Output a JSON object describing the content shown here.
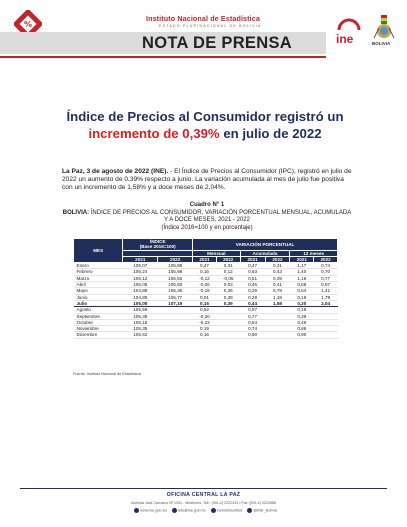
{
  "header": {
    "institution": "Instituto Nacional de Estadística",
    "subtitle": "ESTADO PLURINACIONAL DE BOLIVIA",
    "document_type": "NOTA DE PRENSA",
    "ine_logo_text": "ine",
    "bolivia_text": "BOLIVIA",
    "accent_color": "#c0272d",
    "navy_color": "#1f2e5a"
  },
  "title": {
    "line1": "Índice de Precios al Consumidor registró un",
    "highlight": "incremento de 0,39%",
    "line2_rest": " en julio de 2022"
  },
  "lead": {
    "dateline": "La Paz, 3 de agosto de 2022 (INE).",
    "text": " - El Índice de Precios al Consumidor (IPC), registró en julio de 2022 un aumento de 0,39% respecto a junio. La variación acumulada al mes de julio fue positiva con un incremento de 1,58% y a doce meses de 2,04%."
  },
  "table_caption": {
    "number": "Cuadro N° 1",
    "country": "BOLIVIA:",
    "title": " ÍNDICE DE PRECIOS AL CONSUMIDOR, VARIACIÓN PORCENTUAL MENSUAL, ACUMULADA Y A DOCE MESES, 2021 - 2022",
    "note": "(Índice 2016=100 y en porcentaje)"
  },
  "table": {
    "mes_header": "MES",
    "indice_header": "ÍNDICE",
    "indice_base": "(Base 2016=100)",
    "variacion_header": "VARIACIÓN PORCENTUAL",
    "sub_headers": [
      "Mensual",
      "Acumulada",
      "12 meses"
    ],
    "years": [
      "2021",
      "2022"
    ],
    "rows": [
      {
        "mes": "Enero",
        "v": [
          "105,07",
          "105,88",
          "0,47",
          "0,31",
          "0,47",
          "0,31",
          "1,17",
          "0,74"
        ]
      },
      {
        "mes": "Febrero",
        "v": [
          "105,24",
          "105,98",
          "0,16",
          "0,12",
          "0,63",
          "0,43",
          "1,40",
          "0,70"
        ]
      },
      {
        "mes": "Marzo",
        "v": [
          "105,12",
          "105,93",
          "-0,12",
          "-0,05",
          "0,51",
          "0,39",
          "1,16",
          "0,77"
        ]
      },
      {
        "mes": "Abril",
        "v": [
          "105,05",
          "105,93",
          "-0,06",
          "0,03",
          "0,45",
          "0,41",
          "0,68",
          "0,87"
        ]
      },
      {
        "mes": "Mayo",
        "v": [
          "104,88",
          "106,35",
          "-0,16",
          "0,36",
          "0,29",
          "0,78",
          "0,54",
          "1,41"
        ]
      },
      {
        "mes": "Junio",
        "v": [
          "104,89",
          "106,77",
          "0,01",
          "0,39",
          "0,29",
          "1,18",
          "0,19",
          "1,79"
        ]
      },
      {
        "mes": "Julio",
        "v": [
          "105,05",
          "107,19",
          "0,15",
          "0,39",
          "0,44",
          "1,58",
          "0,20",
          "2,04"
        ],
        "highlight": true
      },
      {
        "mes": "Agosto",
        "v": [
          "105,59",
          "",
          "0,52",
          "",
          "0,97",
          "",
          "0,18",
          ""
        ]
      },
      {
        "mes": "Septiembre",
        "v": [
          "105,39",
          "",
          "-0,20",
          "",
          "0,77",
          "",
          "0,39",
          ""
        ]
      },
      {
        "mes": "Octubre",
        "v": [
          "105,15",
          "",
          "-0,23",
          "",
          "0,54",
          "",
          "0,49",
          ""
        ]
      },
      {
        "mes": "Noviembre",
        "v": [
          "105,35",
          "",
          "0,19",
          "",
          "0,74",
          "",
          "0,86",
          ""
        ]
      },
      {
        "mes": "Diciembre",
        "v": [
          "105,52",
          "",
          "0,16",
          "",
          "0,90",
          "",
          "0,90",
          ""
        ]
      }
    ],
    "source": "Fuente: Instituto Nacional de Estadística"
  },
  "footer": {
    "office": "OFICINA CENTRAL LA PAZ",
    "address": "Avenida José Carrasco Nº 1391 - Miraflores, Telf.: (591-2) 2222333 • Fax: (591-2) 2222885",
    "social": [
      "www.ine.gob.bo",
      "info@ine.gob.bo",
      "ineboliviaoficial",
      "@INE_Bolivia"
    ]
  }
}
